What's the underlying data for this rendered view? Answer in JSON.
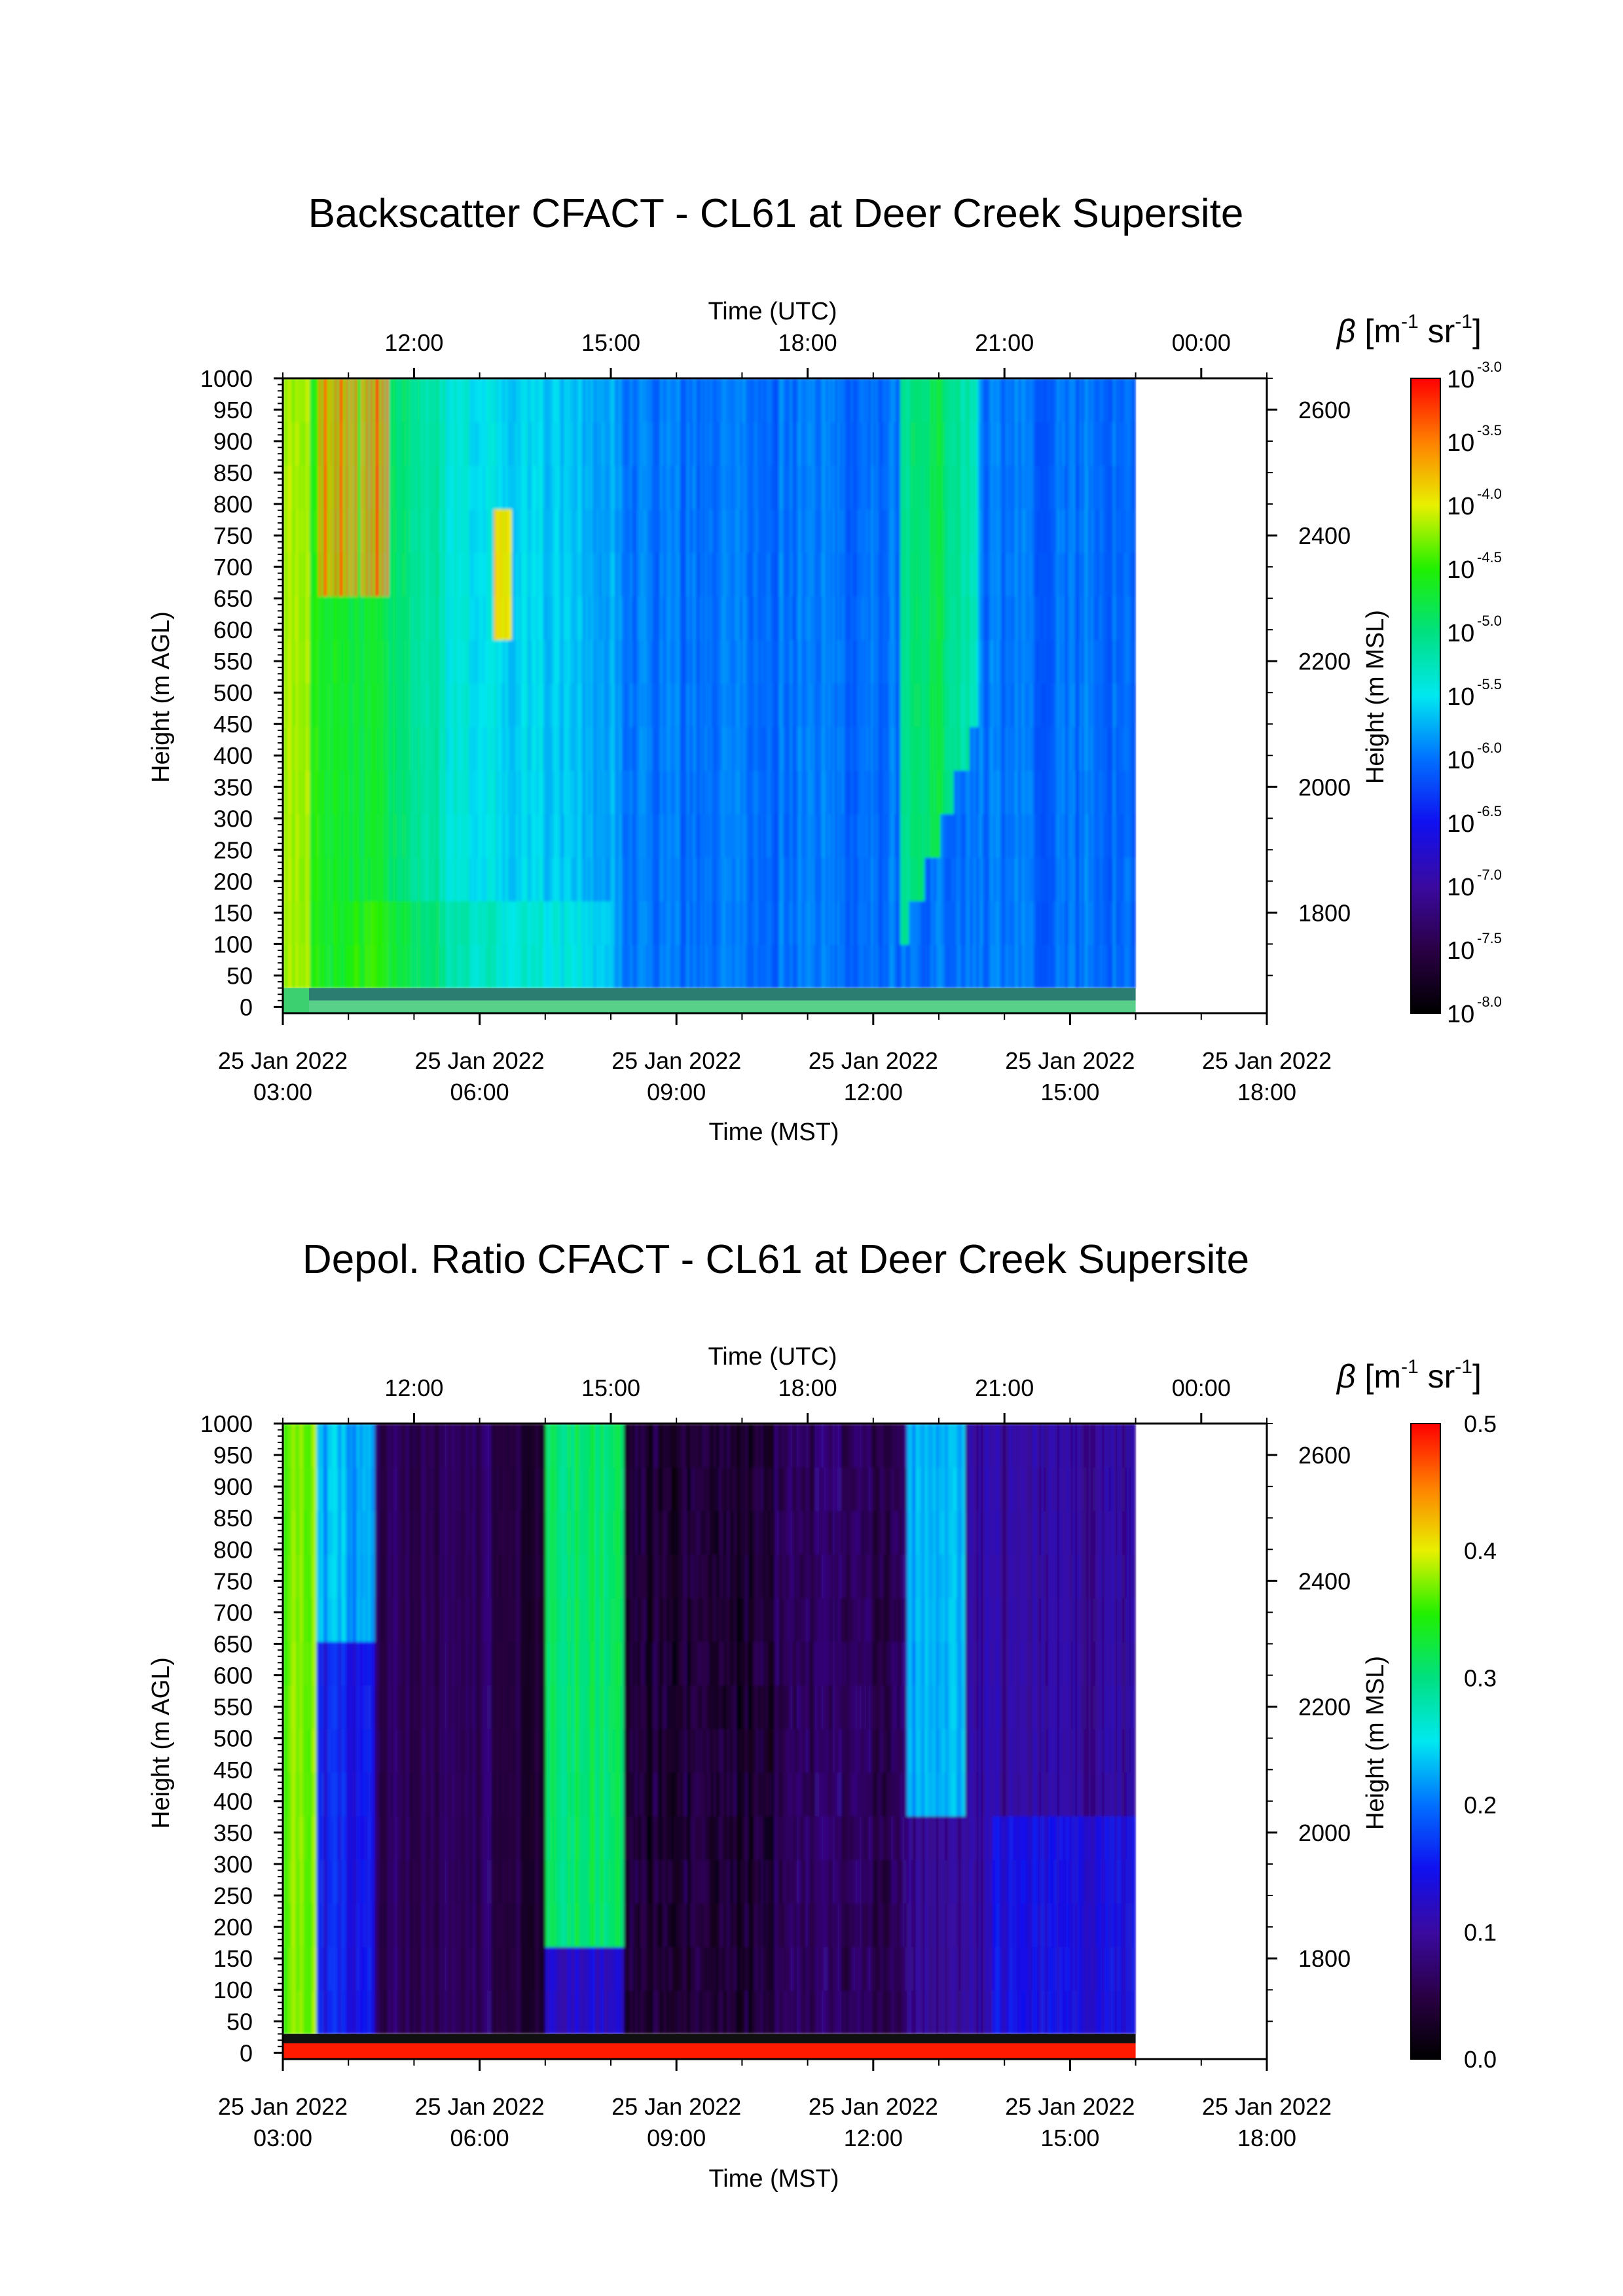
{
  "chart_data": [
    {
      "type": "heatmap",
      "title": "Backscatter CFACT - CL61 at Deer Creek Supersite",
      "top_axis": {
        "label": "Time (UTC)",
        "ticks": [
          "12:00",
          "15:00",
          "18:00",
          "21:00",
          "00:00"
        ],
        "tick_hours": [
          12,
          15,
          18,
          21,
          24
        ]
      },
      "bottom_axis": {
        "label": "Time (MST)",
        "ticks": [
          {
            "date": "25 Jan 2022",
            "time": "03:00"
          },
          {
            "date": "25 Jan 2022",
            "time": "06:00"
          },
          {
            "date": "25 Jan 2022",
            "time": "09:00"
          },
          {
            "date": "25 Jan 2022",
            "time": "12:00"
          },
          {
            "date": "25 Jan 2022",
            "time": "15:00"
          },
          {
            "date": "25 Jan 2022",
            "time": "18:00"
          }
        ],
        "tick_hours": [
          3,
          6,
          9,
          12,
          15,
          18
        ],
        "xlim": [
          3,
          18
        ],
        "data_end_hour": 16.0
      },
      "left_axis": {
        "label": "Height (m AGL)",
        "ticks": [
          "0",
          "50",
          "100",
          "150",
          "200",
          "250",
          "300",
          "350",
          "400",
          "450",
          "500",
          "550",
          "600",
          "650",
          "700",
          "750",
          "800",
          "850",
          "900",
          "950",
          "1000"
        ],
        "ylim": [
          -10,
          1000
        ]
      },
      "right_axis": {
        "label": "Height (m MSL)",
        "ticks": [
          "1800",
          "2000",
          "2200",
          "2400",
          "2600"
        ],
        "offset_m": 1650
      },
      "colorbar": {
        "label_prefix": "β [m",
        "label_sup1": "-1",
        "label_mid": " sr",
        "label_sup2": "-1",
        "label_suffix": "]",
        "base": "10",
        "exponents": [
          "-8.0",
          "-7.5",
          "-7.0",
          "-6.5",
          "-6.0",
          "-5.5",
          "-5.0",
          "-4.5",
          "-4.0",
          "-3.5",
          "-3.0"
        ],
        "range": [
          -8.0,
          -3.0
        ],
        "scale": "log10"
      },
      "description_hint": "early hours (03:00-05:30 MST) elevated backscatter (green/yellow) with red cloud streaks near 03:30-04:30 MST above 650 m; later hours mostly blue background; green cloud feature around 13:00-14:00 MST"
    },
    {
      "type": "heatmap",
      "title": "Depol. Ratio CFACT - CL61 at Deer Creek Supersite",
      "top_axis": {
        "label": "Time (UTC)",
        "ticks": [
          "12:00",
          "15:00",
          "18:00",
          "21:00",
          "00:00"
        ],
        "tick_hours": [
          12,
          15,
          18,
          21,
          24
        ]
      },
      "bottom_axis": {
        "label": "Time (MST)",
        "ticks": [
          {
            "date": "25 Jan 2022",
            "time": "03:00"
          },
          {
            "date": "25 Jan 2022",
            "time": "06:00"
          },
          {
            "date": "25 Jan 2022",
            "time": "09:00"
          },
          {
            "date": "25 Jan 2022",
            "time": "12:00"
          },
          {
            "date": "25 Jan 2022",
            "time": "15:00"
          },
          {
            "date": "25 Jan 2022",
            "time": "18:00"
          }
        ],
        "tick_hours": [
          3,
          6,
          9,
          12,
          15,
          18
        ],
        "xlim": [
          3,
          18
        ],
        "data_end_hour": 16.0
      },
      "left_axis": {
        "label": "Height (m AGL)",
        "ticks": [
          "0",
          "50",
          "100",
          "150",
          "200",
          "250",
          "300",
          "350",
          "400",
          "450",
          "500",
          "550",
          "600",
          "650",
          "700",
          "750",
          "800",
          "850",
          "900",
          "950",
          "1000"
        ],
        "ylim": [
          -10,
          1000
        ]
      },
      "right_axis": {
        "label": "Height (m MSL)",
        "ticks": [
          "1800",
          "2000",
          "2200",
          "2400",
          "2600"
        ],
        "offset_m": 1650
      },
      "colorbar": {
        "label_prefix": "β [m",
        "label_sup1": "-1",
        "label_mid": " sr",
        "label_sup2": "-1",
        "label_suffix": "]",
        "ticks": [
          "0.0",
          "0.1",
          "0.2",
          "0.3",
          "0.4",
          "0.5"
        ],
        "range": [
          0.0,
          0.5
        ],
        "scale": "linear"
      }
    }
  ]
}
